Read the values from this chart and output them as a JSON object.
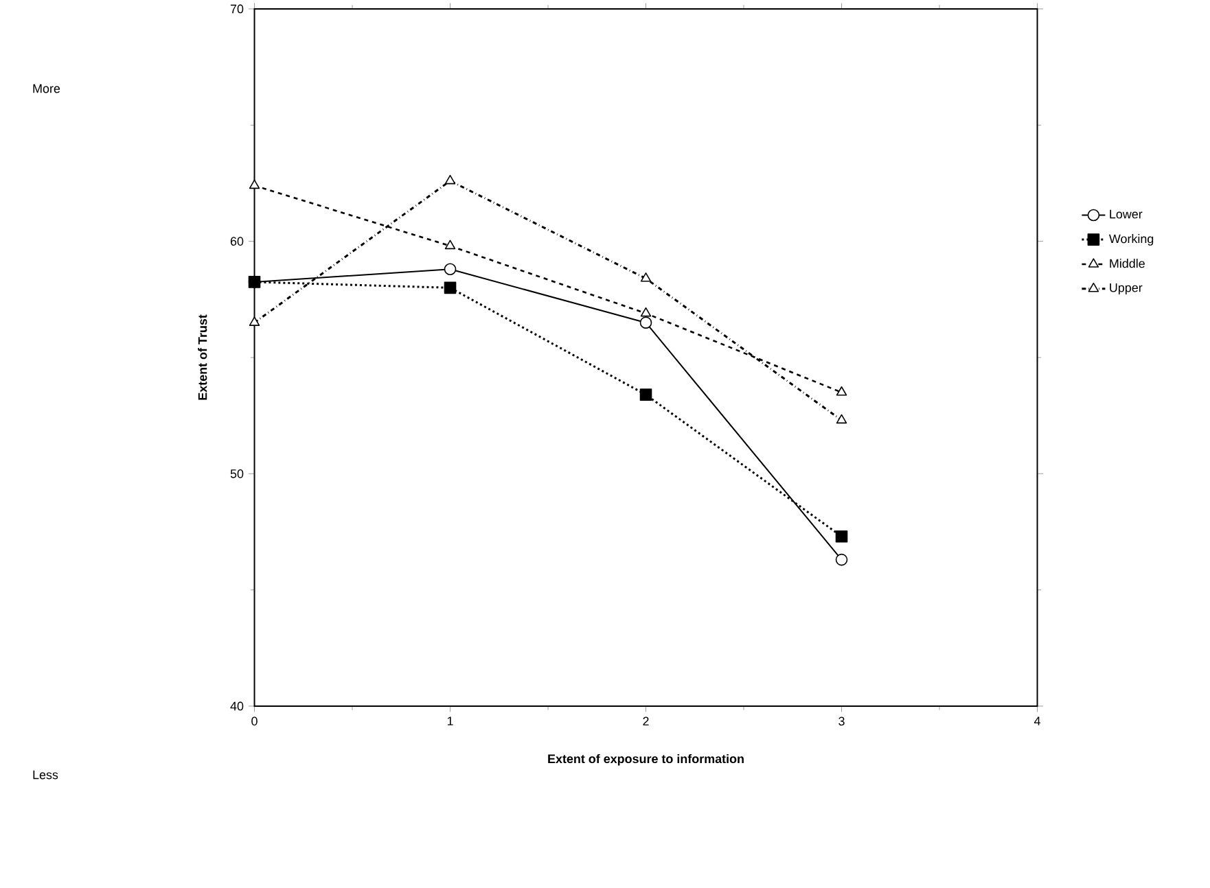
{
  "chart_data": {
    "type": "line",
    "xlabel": "Extent of exposure to information",
    "ylabel": "Extent of Trust",
    "annotations": [
      "More",
      "Less"
    ],
    "x": [
      0,
      1,
      2,
      3
    ],
    "series": [
      {
        "name": "Lower",
        "color": "#000000",
        "values": [
          58.25,
          58.8,
          56.5,
          46.3
        ],
        "marker": "circle",
        "line_style": "solid"
      },
      {
        "name": "Working",
        "color": "#000000",
        "values": [
          58.25,
          58.0,
          53.4,
          47.3
        ],
        "marker": "square",
        "line_style": "dotted"
      },
      {
        "name": "Middle",
        "color": "#000000",
        "values": [
          62.4,
          59.8,
          56.9,
          53.5
        ],
        "marker": "triangle",
        "line_style": "dashed"
      },
      {
        "name": "Upper",
        "color": "#000000",
        "values": [
          56.5,
          62.6,
          58.4,
          52.3
        ],
        "marker": "triangle",
        "line_style": "dashdot"
      }
    ],
    "xlim": [
      0,
      4
    ],
    "ylim": [
      40,
      70
    ],
    "xticks": [
      0,
      1,
      2,
      3,
      4
    ],
    "yticks": [
      40,
      50,
      60,
      70
    ],
    "grid": false,
    "legend": "right"
  }
}
